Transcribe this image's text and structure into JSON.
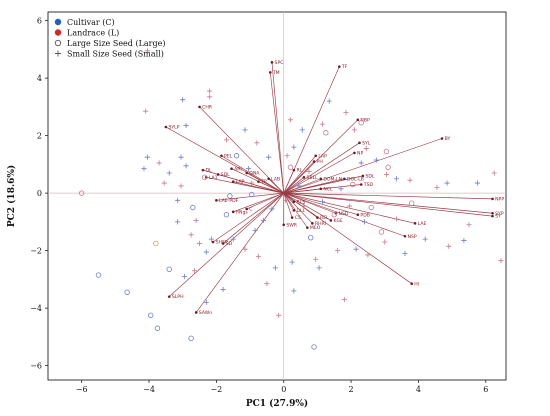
{
  "chart_data": {
    "type": "scatter",
    "subtype": "pca-biplot",
    "title": "",
    "xlabel": "PC1 (27.9%)",
    "ylabel": "PC2 (18.6%)",
    "xlim": [
      -7,
      6.6
    ],
    "ylim": [
      -6.5,
      6.3
    ],
    "xticks": [
      -6,
      -4,
      -2,
      0,
      2,
      4,
      6
    ],
    "yticks": [
      -6,
      -4,
      -2,
      0,
      2,
      4,
      6
    ],
    "grid": false,
    "zero_lines": true,
    "legend_position": "top-left",
    "legend": [
      {
        "label": "Cultivar (C)",
        "symbol": "filled-circle",
        "color": "#1f5fbf"
      },
      {
        "label": "Landrace (L)",
        "symbol": "filled-circle",
        "color": "#d62828"
      },
      {
        "label": "Large Size Seed (Large)",
        "symbol": "open-circle",
        "color": "#555555"
      },
      {
        "label": "Small Size Seed (Small)",
        "symbol": "plus",
        "color": "#555555"
      }
    ],
    "colors": {
      "vector": "#9c3a45",
      "cultivar": "#6e7fc4",
      "landrace": "#c97a8c",
      "large_seed_orange": "#d9a35a"
    },
    "vectors": [
      {
        "label": "SPC",
        "x": -0.35,
        "y": 4.55
      },
      {
        "label": "TM",
        "x": -0.4,
        "y": 4.2
      },
      {
        "label": "TF",
        "x": 1.65,
        "y": 4.4
      },
      {
        "label": "NBP",
        "x": 2.2,
        "y": 2.55
      },
      {
        "label": "SYL",
        "x": 2.25,
        "y": 1.75
      },
      {
        "label": "NP",
        "x": 2.1,
        "y": 1.4
      },
      {
        "label": "BY",
        "x": 4.7,
        "y": 1.9
      },
      {
        "label": "SYLP",
        "x": -3.5,
        "y": 2.3
      },
      {
        "label": "CHR",
        "x": -2.5,
        "y": 3.0
      },
      {
        "label": "LAP",
        "x": 0.95,
        "y": 1.3
      },
      {
        "label": "PH",
        "x": 0.9,
        "y": 1.1
      },
      {
        "label": "PEL",
        "x": -1.85,
        "y": 1.3
      },
      {
        "label": "ARI",
        "x": -1.55,
        "y": 0.85
      },
      {
        "label": "DL",
        "x": -2.4,
        "y": 0.8
      },
      {
        "label": "SDL",
        "x": -1.95,
        "y": 0.65
      },
      {
        "label": "LA1",
        "x": -2.3,
        "y": 0.55
      },
      {
        "label": "DNA",
        "x": -1.1,
        "y": 0.7
      },
      {
        "label": "LAP",
        "x": -1.5,
        "y": 0.4
      },
      {
        "label": "TP",
        "x": -0.75,
        "y": 0.4
      },
      {
        "label": "LAB",
        "x": -0.45,
        "y": 0.5
      },
      {
        "label": "LAE-PDF",
        "x": -2.0,
        "y": -0.25
      },
      {
        "label": "RL",
        "x": 0.3,
        "y": 0.8
      },
      {
        "label": "SBLL",
        "x": 0.6,
        "y": 0.55
      },
      {
        "label": "DOM-LN",
        "x": 1.1,
        "y": 0.5
      },
      {
        "label": "SDL",
        "x": 2.35,
        "y": 0.6
      },
      {
        "label": "DOL-LB",
        "x": 1.8,
        "y": 0.5
      },
      {
        "label": "TSD",
        "x": 2.3,
        "y": 0.3
      },
      {
        "label": "NCL",
        "x": 1.1,
        "y": 0.15
      },
      {
        "label": "NPP",
        "x": 6.2,
        "y": -0.2
      },
      {
        "label": "SYP",
        "x": 6.2,
        "y": -0.7
      },
      {
        "label": "SY",
        "x": 6.2,
        "y": -0.8
      },
      {
        "label": "LAE",
        "x": 3.9,
        "y": -1.05
      },
      {
        "label": "NSP",
        "x": 3.6,
        "y": -1.5
      },
      {
        "label": "HI",
        "x": 3.8,
        "y": -3.15
      },
      {
        "label": "PDB",
        "x": 2.2,
        "y": -0.75
      },
      {
        "label": "NSD",
        "x": 1.55,
        "y": -0.7
      },
      {
        "label": "KGE",
        "x": 1.4,
        "y": -0.95
      },
      {
        "label": "REL",
        "x": 1.0,
        "y": -0.85
      },
      {
        "label": "RHRI",
        "x": 0.85,
        "y": -1.05
      },
      {
        "label": "MEO",
        "x": 0.7,
        "y": -1.2
      },
      {
        "label": "RLS",
        "x": 0.3,
        "y": -0.3
      },
      {
        "label": "DLL",
        "x": 0.3,
        "y": -0.6
      },
      {
        "label": "CS",
        "x": 0.25,
        "y": -0.85
      },
      {
        "label": "SWR",
        "x": 0.0,
        "y": -1.1
      },
      {
        "label": "RNgs",
        "x": -1.5,
        "y": -0.65
      },
      {
        "label": "C",
        "x": -1.1,
        "y": -0.55
      },
      {
        "label": "SHSP",
        "x": -2.1,
        "y": -1.7
      },
      {
        "label": "SD",
        "x": -1.8,
        "y": -1.75
      },
      {
        "label": "SLPH",
        "x": -3.4,
        "y": -3.6
      },
      {
        "label": "SAWn",
        "x": -2.6,
        "y": -4.15
      }
    ],
    "points": [
      {
        "x": -5.5,
        "y": -2.85,
        "group": "C",
        "size": "Large"
      },
      {
        "x": -4.65,
        "y": -3.45,
        "group": "C",
        "size": "Large"
      },
      {
        "x": -3.75,
        "y": -4.7,
        "group": "C",
        "size": "Large"
      },
      {
        "x": -3.95,
        "y": -4.25,
        "group": "C",
        "size": "Large"
      },
      {
        "x": -3.4,
        "y": -2.65,
        "group": "C",
        "size": "Large"
      },
      {
        "x": -2.75,
        "y": -5.05,
        "group": "C",
        "size": "Large"
      },
      {
        "x": -2.7,
        "y": -0.5,
        "group": "C",
        "size": "Large"
      },
      {
        "x": -1.7,
        "y": -0.75,
        "group": "C",
        "size": "Large"
      },
      {
        "x": -1.4,
        "y": 1.3,
        "group": "C",
        "size": "Large"
      },
      {
        "x": -1.6,
        "y": -0.1,
        "group": "C",
        "size": "Large"
      },
      {
        "x": -0.95,
        "y": -0.05,
        "group": "C",
        "size": "Large"
      },
      {
        "x": 0.8,
        "y": -1.55,
        "group": "C",
        "size": "Large"
      },
      {
        "x": 0.9,
        "y": -5.35,
        "group": "C",
        "size": "Large"
      },
      {
        "x": -3.8,
        "y": -1.75,
        "group": "L",
        "size": "Large",
        "accent": "orange"
      },
      {
        "x": -6.0,
        "y": 0.0,
        "group": "L",
        "size": "Large"
      },
      {
        "x": -2.35,
        "y": 0.55,
        "group": "L",
        "size": "Large"
      },
      {
        "x": 1.25,
        "y": 2.1,
        "group": "L",
        "size": "Large"
      },
      {
        "x": 0.2,
        "y": 0.9,
        "group": "L",
        "size": "Large"
      },
      {
        "x": 3.05,
        "y": 1.45,
        "group": "L",
        "size": "Large"
      },
      {
        "x": 2.05,
        "y": 0.3,
        "group": "L",
        "size": "Large"
      },
      {
        "x": 1.5,
        "y": -0.75,
        "group": "L",
        "size": "Large"
      },
      {
        "x": 2.6,
        "y": -0.5,
        "group": "L",
        "size": "Large"
      },
      {
        "x": 3.8,
        "y": -0.35,
        "group": "L",
        "size": "Large"
      },
      {
        "x": 2.9,
        "y": -1.35,
        "group": "L",
        "size": "Large"
      },
      {
        "x": 3.1,
        "y": 0.9,
        "group": "L",
        "size": "Large"
      },
      {
        "x": 2.3,
        "y": 2.45,
        "group": "L",
        "size": "Large"
      },
      {
        "x": -4.05,
        "y": 4.95,
        "group": "L",
        "size": "Small"
      },
      {
        "x": -2.2,
        "y": 3.35,
        "group": "L",
        "size": "Small"
      },
      {
        "x": -2.2,
        "y": 3.55,
        "group": "L",
        "size": "Small"
      },
      {
        "x": -3.0,
        "y": 3.25,
        "group": "C",
        "size": "Small"
      },
      {
        "x": -2.9,
        "y": 2.35,
        "group": "C",
        "size": "Small"
      },
      {
        "x": -3.05,
        "y": 1.25,
        "group": "C",
        "size": "Small"
      },
      {
        "x": -2.9,
        "y": 0.95,
        "group": "C",
        "size": "Small"
      },
      {
        "x": -3.4,
        "y": 0.7,
        "group": "C",
        "size": "Small"
      },
      {
        "x": -3.55,
        "y": 0.35,
        "group": "L",
        "size": "Small"
      },
      {
        "x": -3.05,
        "y": 0.25,
        "group": "L",
        "size": "Small"
      },
      {
        "x": -3.15,
        "y": -0.25,
        "group": "C",
        "size": "Small"
      },
      {
        "x": -3.15,
        "y": -1.0,
        "group": "C",
        "size": "Small"
      },
      {
        "x": -2.6,
        "y": -0.95,
        "group": "L",
        "size": "Small"
      },
      {
        "x": -2.75,
        "y": -1.45,
        "group": "L",
        "size": "Small"
      },
      {
        "x": -2.15,
        "y": -1.6,
        "group": "C",
        "size": "Small"
      },
      {
        "x": -2.5,
        "y": -1.75,
        "group": "L",
        "size": "Small"
      },
      {
        "x": -2.3,
        "y": -2.05,
        "group": "C",
        "size": "Small"
      },
      {
        "x": -2.65,
        "y": -2.7,
        "group": "L",
        "size": "Small"
      },
      {
        "x": -2.95,
        "y": -2.9,
        "group": "C",
        "size": "Small"
      },
      {
        "x": -2.3,
        "y": -3.8,
        "group": "C",
        "size": "Small"
      },
      {
        "x": -1.8,
        "y": -3.35,
        "group": "C",
        "size": "Small"
      },
      {
        "x": -1.5,
        "y": -1.6,
        "group": "C",
        "size": "Small"
      },
      {
        "x": -1.15,
        "y": -1.95,
        "group": "L",
        "size": "Small"
      },
      {
        "x": -0.85,
        "y": -1.3,
        "group": "C",
        "size": "Small"
      },
      {
        "x": -0.75,
        "y": -2.2,
        "group": "L",
        "size": "Small"
      },
      {
        "x": -0.25,
        "y": -2.6,
        "group": "C",
        "size": "Small"
      },
      {
        "x": -0.5,
        "y": -3.15,
        "group": "L",
        "size": "Small"
      },
      {
        "x": -0.15,
        "y": -4.25,
        "group": "L",
        "size": "Small"
      },
      {
        "x": 0.3,
        "y": -3.4,
        "group": "C",
        "size": "Small"
      },
      {
        "x": 0.25,
        "y": -2.4,
        "group": "C",
        "size": "Small"
      },
      {
        "x": 0.95,
        "y": -2.3,
        "group": "L",
        "size": "Small"
      },
      {
        "x": 1.05,
        "y": -2.6,
        "group": "C",
        "size": "Small"
      },
      {
        "x": 1.6,
        "y": -2.0,
        "group": "L",
        "size": "Small"
      },
      {
        "x": 1.8,
        "y": -3.7,
        "group": "L",
        "size": "Small"
      },
      {
        "x": 2.15,
        "y": -1.95,
        "group": "C",
        "size": "Small"
      },
      {
        "x": 2.5,
        "y": -2.15,
        "group": "L",
        "size": "Small"
      },
      {
        "x": 3.0,
        "y": -1.7,
        "group": "L",
        "size": "Small"
      },
      {
        "x": 3.6,
        "y": -2.1,
        "group": "C",
        "size": "Small"
      },
      {
        "x": 4.2,
        "y": -1.6,
        "group": "C",
        "size": "Small"
      },
      {
        "x": 4.9,
        "y": -1.85,
        "group": "L",
        "size": "Small"
      },
      {
        "x": 5.35,
        "y": -1.65,
        "group": "C",
        "size": "Small"
      },
      {
        "x": 5.5,
        "y": -1.1,
        "group": "L",
        "size": "Small"
      },
      {
        "x": 6.45,
        "y": -2.35,
        "group": "L",
        "size": "Small"
      },
      {
        "x": 6.25,
        "y": 0.7,
        "group": "L",
        "size": "Small"
      },
      {
        "x": 5.75,
        "y": 0.35,
        "group": "C",
        "size": "Small"
      },
      {
        "x": 4.85,
        "y": 0.35,
        "group": "C",
        "size": "Small"
      },
      {
        "x": 4.55,
        "y": 0.2,
        "group": "L",
        "size": "Small"
      },
      {
        "x": 3.75,
        "y": 0.45,
        "group": "L",
        "size": "Small"
      },
      {
        "x": 3.35,
        "y": 0.5,
        "group": "C",
        "size": "Small"
      },
      {
        "x": 3.05,
        "y": 0.65,
        "group": "L",
        "size": "Small"
      },
      {
        "x": 2.75,
        "y": 1.15,
        "group": "C",
        "size": "Small"
      },
      {
        "x": 2.45,
        "y": 1.55,
        "group": "L",
        "size": "Small"
      },
      {
        "x": 2.3,
        "y": 1.05,
        "group": "C",
        "size": "Small"
      },
      {
        "x": 2.1,
        "y": 2.2,
        "group": "L",
        "size": "Small"
      },
      {
        "x": 1.85,
        "y": 2.8,
        "group": "L",
        "size": "Small"
      },
      {
        "x": 1.35,
        "y": 3.2,
        "group": "C",
        "size": "Small"
      },
      {
        "x": 1.15,
        "y": 2.4,
        "group": "L",
        "size": "Small"
      },
      {
        "x": 0.55,
        "y": 2.2,
        "group": "C",
        "size": "Small"
      },
      {
        "x": 0.2,
        "y": 2.55,
        "group": "L",
        "size": "Small"
      },
      {
        "x": 0.3,
        "y": 1.6,
        "group": "C",
        "size": "Small"
      },
      {
        "x": 0.75,
        "y": 0.75,
        "group": "L",
        "size": "Small"
      },
      {
        "x": 0.45,
        "y": 0.25,
        "group": "C",
        "size": "Small"
      },
      {
        "x": 0.1,
        "y": 1.3,
        "group": "L",
        "size": "Small"
      },
      {
        "x": -0.45,
        "y": 1.25,
        "group": "C",
        "size": "Small"
      },
      {
        "x": -0.8,
        "y": 1.75,
        "group": "L",
        "size": "Small"
      },
      {
        "x": -1.15,
        "y": 2.2,
        "group": "C",
        "size": "Small"
      },
      {
        "x": -1.7,
        "y": 1.85,
        "group": "L",
        "size": "Small"
      },
      {
        "x": -1.05,
        "y": 0.85,
        "group": "C",
        "size": "Small"
      },
      {
        "x": -0.95,
        "y": 0.35,
        "group": "L",
        "size": "Small"
      },
      {
        "x": -0.35,
        "y": -0.55,
        "group": "C",
        "size": "Small"
      },
      {
        "x": 0.05,
        "y": -0.25,
        "group": "L",
        "size": "Small"
      },
      {
        "x": -0.6,
        "y": -0.95,
        "group": "C",
        "size": "Small"
      },
      {
        "x": 0.6,
        "y": -0.45,
        "group": "L",
        "size": "Small"
      },
      {
        "x": 1.15,
        "y": -0.3,
        "group": "C",
        "size": "Small"
      },
      {
        "x": 1.7,
        "y": 0.15,
        "group": "C",
        "size": "Small"
      },
      {
        "x": 1.95,
        "y": -0.45,
        "group": "L",
        "size": "Small"
      },
      {
        "x": 2.4,
        "y": -1.0,
        "group": "C",
        "size": "Small"
      },
      {
        "x": 3.35,
        "y": -0.9,
        "group": "L",
        "size": "Small"
      },
      {
        "x": -4.1,
        "y": 2.85,
        "group": "L",
        "size": "Small"
      },
      {
        "x": -4.05,
        "y": 1.25,
        "group": "C",
        "size": "Small"
      },
      {
        "x": -4.15,
        "y": 0.85,
        "group": "C",
        "size": "Small"
      },
      {
        "x": -3.7,
        "y": 1.05,
        "group": "L",
        "size": "Small"
      }
    ]
  }
}
